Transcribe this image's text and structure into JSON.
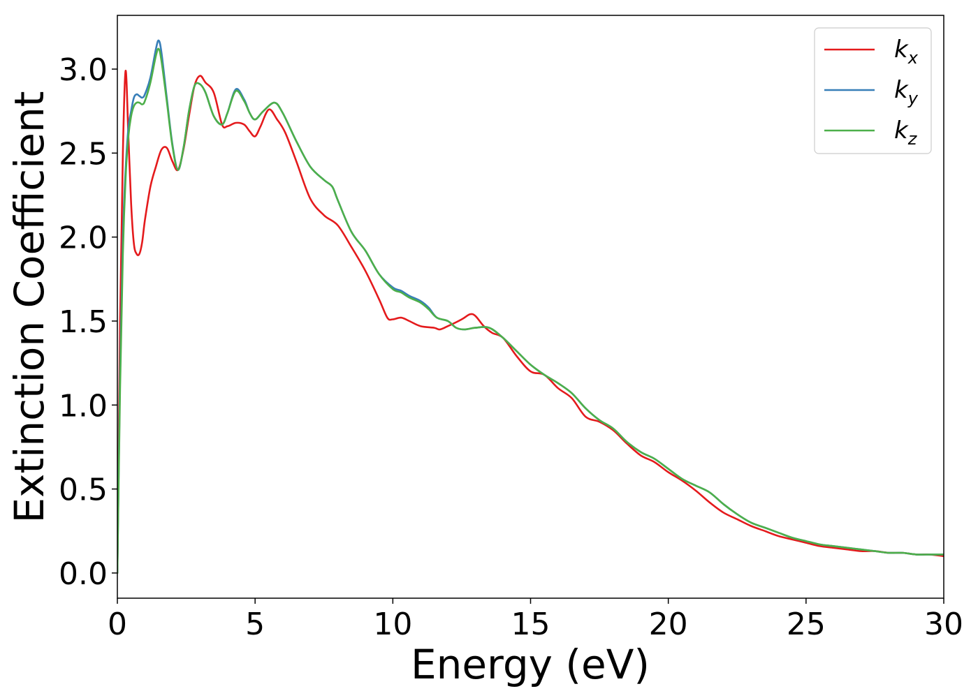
{
  "chart_data": {
    "type": "line",
    "title": "",
    "xlabel": "Energy (eV)",
    "ylabel": "Extinction Coefficient",
    "xlim": [
      0,
      30
    ],
    "ylim": [
      -0.15,
      3.32
    ],
    "xticks": [
      0,
      5,
      10,
      15,
      20,
      25,
      30
    ],
    "xtick_labels": [
      "0",
      "5",
      "10",
      "15",
      "20",
      "25",
      "30"
    ],
    "yticks": [
      0.0,
      0.5,
      1.0,
      1.5,
      2.0,
      2.5,
      3.0
    ],
    "ytick_labels": [
      "0.0",
      "0.5",
      "1.0",
      "1.5",
      "2.0",
      "2.5",
      "3.0"
    ],
    "grid": false,
    "legend_position": "top-right",
    "series": [
      {
        "name": "k",
        "subscript": "x",
        "color": "#e41a1c",
        "x": [
          0,
          0.1,
          0.2,
          0.3,
          0.4,
          0.5,
          0.6,
          0.7,
          0.8,
          0.9,
          1.0,
          1.2,
          1.4,
          1.6,
          1.8,
          2.0,
          2.2,
          2.4,
          2.6,
          2.8,
          3.0,
          3.2,
          3.5,
          3.8,
          4.0,
          4.3,
          4.6,
          4.8,
          5.0,
          5.2,
          5.5,
          5.8,
          6.1,
          6.5,
          7.0,
          7.5,
          8.0,
          8.5,
          9.0,
          9.5,
          9.8,
          10.0,
          10.3,
          10.6,
          11.0,
          11.5,
          11.7,
          12.0,
          12.5,
          12.8,
          13.0,
          13.3,
          13.6,
          14.0,
          14.5,
          15.0,
          15.5,
          16.0,
          16.5,
          17.0,
          17.5,
          18.0,
          18.5,
          19.0,
          19.5,
          20.0,
          20.5,
          21.0,
          21.5,
          22.0,
          22.5,
          23.0,
          23.5,
          24.0,
          24.5,
          25.0,
          25.5,
          26.0,
          26.5,
          27.0,
          27.5,
          28.0,
          28.5,
          29.0,
          29.5,
          30.0
        ],
        "y": [
          0.0,
          1.5,
          2.5,
          2.99,
          2.6,
          2.2,
          1.96,
          1.9,
          1.9,
          1.97,
          2.1,
          2.3,
          2.42,
          2.52,
          2.53,
          2.45,
          2.4,
          2.52,
          2.72,
          2.9,
          2.96,
          2.92,
          2.86,
          2.67,
          2.66,
          2.68,
          2.67,
          2.63,
          2.6,
          2.66,
          2.76,
          2.7,
          2.62,
          2.45,
          2.23,
          2.13,
          2.07,
          1.94,
          1.8,
          1.63,
          1.52,
          1.51,
          1.52,
          1.5,
          1.47,
          1.46,
          1.45,
          1.47,
          1.51,
          1.54,
          1.53,
          1.47,
          1.43,
          1.4,
          1.29,
          1.2,
          1.18,
          1.1,
          1.04,
          0.93,
          0.9,
          0.85,
          0.77,
          0.7,
          0.66,
          0.6,
          0.55,
          0.49,
          0.42,
          0.36,
          0.32,
          0.28,
          0.25,
          0.22,
          0.2,
          0.18,
          0.16,
          0.15,
          0.14,
          0.13,
          0.13,
          0.12,
          0.12,
          0.11,
          0.11,
          0.1
        ]
      },
      {
        "name": "k",
        "subscript": "y",
        "color": "#377eb8",
        "x": [
          0,
          0.1,
          0.2,
          0.3,
          0.4,
          0.5,
          0.6,
          0.7,
          0.8,
          0.9,
          1.0,
          1.2,
          1.4,
          1.5,
          1.6,
          1.8,
          2.0,
          2.2,
          2.4,
          2.6,
          2.8,
          3.0,
          3.2,
          3.5,
          3.8,
          4.0,
          4.3,
          4.6,
          4.8,
          5.0,
          5.3,
          5.7,
          6.0,
          6.5,
          7.0,
          7.5,
          7.8,
          8.0,
          8.5,
          9.0,
          9.5,
          10.0,
          10.3,
          10.6,
          11.0,
          11.3,
          11.6,
          12.0,
          12.3,
          12.6,
          13.0,
          13.5,
          14.0,
          14.5,
          15.0,
          15.5,
          16.0,
          16.5,
          17.0,
          17.5,
          18.0,
          18.5,
          19.0,
          19.5,
          20.0,
          20.5,
          21.0,
          21.5,
          22.0,
          22.5,
          23.0,
          23.5,
          24.0,
          24.5,
          25.0,
          25.5,
          26.0,
          26.5,
          27.0,
          27.5,
          28.0,
          28.5,
          29.0,
          29.5,
          30.0
        ],
        "y": [
          0.0,
          1.2,
          2.0,
          2.4,
          2.65,
          2.75,
          2.83,
          2.85,
          2.84,
          2.83,
          2.85,
          2.95,
          3.12,
          3.17,
          3.1,
          2.82,
          2.55,
          2.4,
          2.53,
          2.75,
          2.9,
          2.91,
          2.86,
          2.72,
          2.67,
          2.74,
          2.88,
          2.82,
          2.74,
          2.7,
          2.75,
          2.8,
          2.74,
          2.57,
          2.42,
          2.34,
          2.3,
          2.22,
          2.03,
          1.92,
          1.78,
          1.7,
          1.68,
          1.65,
          1.62,
          1.58,
          1.52,
          1.5,
          1.46,
          1.45,
          1.46,
          1.46,
          1.4,
          1.32,
          1.24,
          1.18,
          1.13,
          1.07,
          0.98,
          0.91,
          0.86,
          0.78,
          0.72,
          0.68,
          0.62,
          0.56,
          0.52,
          0.48,
          0.41,
          0.35,
          0.3,
          0.27,
          0.24,
          0.21,
          0.19,
          0.17,
          0.16,
          0.15,
          0.14,
          0.13,
          0.12,
          0.12,
          0.11,
          0.11,
          0.11
        ]
      },
      {
        "name": "k",
        "subscript": "z",
        "color": "#4daf4a",
        "x": [
          0,
          0.1,
          0.2,
          0.3,
          0.4,
          0.5,
          0.6,
          0.7,
          0.8,
          0.9,
          1.0,
          1.2,
          1.4,
          1.5,
          1.6,
          1.8,
          2.0,
          2.2,
          2.4,
          2.6,
          2.8,
          3.0,
          3.2,
          3.5,
          3.8,
          4.0,
          4.3,
          4.6,
          4.8,
          5.0,
          5.3,
          5.7,
          6.0,
          6.5,
          7.0,
          7.5,
          7.8,
          8.0,
          8.5,
          9.0,
          9.5,
          10.0,
          10.3,
          10.6,
          11.0,
          11.3,
          11.6,
          12.0,
          12.3,
          12.6,
          13.0,
          13.5,
          14.0,
          14.5,
          15.0,
          15.5,
          16.0,
          16.5,
          17.0,
          17.5,
          18.0,
          18.5,
          19.0,
          19.5,
          20.0,
          20.5,
          21.0,
          21.5,
          22.0,
          22.5,
          23.0,
          23.5,
          24.0,
          24.5,
          25.0,
          25.5,
          26.0,
          26.5,
          27.0,
          27.5,
          28.0,
          28.5,
          29.0,
          29.5,
          30.0
        ],
        "y": [
          0.0,
          1.1,
          1.9,
          2.35,
          2.6,
          2.72,
          2.78,
          2.8,
          2.8,
          2.79,
          2.81,
          2.92,
          3.08,
          3.12,
          3.05,
          2.8,
          2.54,
          2.4,
          2.53,
          2.75,
          2.9,
          2.91,
          2.86,
          2.72,
          2.67,
          2.74,
          2.87,
          2.81,
          2.74,
          2.7,
          2.75,
          2.8,
          2.74,
          2.57,
          2.42,
          2.34,
          2.3,
          2.22,
          2.03,
          1.92,
          1.78,
          1.69,
          1.67,
          1.64,
          1.61,
          1.57,
          1.52,
          1.5,
          1.46,
          1.45,
          1.46,
          1.46,
          1.4,
          1.32,
          1.24,
          1.18,
          1.13,
          1.07,
          0.98,
          0.91,
          0.86,
          0.78,
          0.72,
          0.68,
          0.62,
          0.56,
          0.52,
          0.48,
          0.41,
          0.35,
          0.3,
          0.27,
          0.24,
          0.21,
          0.19,
          0.17,
          0.16,
          0.15,
          0.14,
          0.13,
          0.12,
          0.12,
          0.11,
          0.11,
          0.11
        ]
      }
    ]
  }
}
